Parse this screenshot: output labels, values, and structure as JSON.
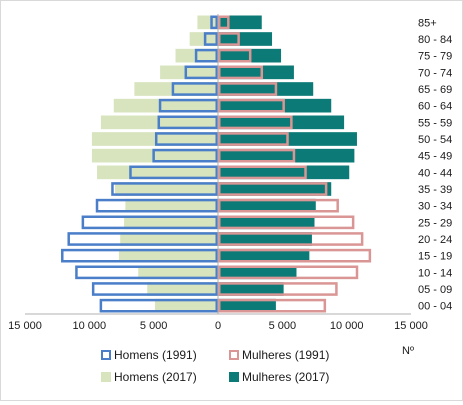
{
  "chart_data": {
    "type": "bar",
    "orientation": "horizontal",
    "layout": "population-pyramid",
    "title": "",
    "xlabel": "Nº",
    "ylabel": "",
    "xlim": [
      -15000,
      15000
    ],
    "xticks": [
      -15000,
      -10000,
      -5000,
      0,
      5000,
      10000,
      15000
    ],
    "xtick_labels": [
      "15 000",
      "10 000",
      "5 000",
      "0",
      "5 000",
      "10 000",
      "15 000"
    ],
    "categories": [
      "00 - 04",
      "05 - 09",
      "10 - 14",
      "15 - 19",
      "20 - 24",
      "25 - 29",
      "30 - 34",
      "35 - 39",
      "40 - 44",
      "45 - 49",
      "50 - 54",
      "55 - 59",
      "60 - 64",
      "65 - 69",
      "70 - 74",
      "75 - 79",
      "80 - 84",
      "85+"
    ],
    "series": [
      {
        "name": "Homens (2017)",
        "side": "left",
        "style": "filled",
        "color": "#d7e4bd",
        "values": [
          4900,
          5500,
          6200,
          7700,
          7600,
          7300,
          7200,
          8000,
          9400,
          9800,
          9800,
          9100,
          8100,
          6500,
          4500,
          3300,
          2200,
          1600
        ]
      },
      {
        "name": "Mulheres (2017)",
        "side": "right",
        "style": "filled",
        "color": "#0c7a76",
        "values": [
          4500,
          5100,
          6100,
          7100,
          7300,
          7500,
          7600,
          8800,
          10200,
          10600,
          10800,
          9800,
          8800,
          7400,
          5900,
          4900,
          4200,
          3400
        ]
      },
      {
        "name": "Homens (1991)",
        "side": "left",
        "style": "outline",
        "color": "#4a7ec9",
        "values": [
          9200,
          9800,
          11100,
          12200,
          11700,
          10600,
          9500,
          8300,
          6900,
          5100,
          4900,
          4700,
          4600,
          3600,
          2600,
          1800,
          1100,
          600
        ]
      },
      {
        "name": "Mulheres (1991)",
        "side": "right",
        "style": "outline",
        "color": "#d99694",
        "values": [
          8400,
          9300,
          10900,
          11900,
          11300,
          10600,
          9400,
          8500,
          6900,
          6000,
          5500,
          5800,
          5200,
          4600,
          3500,
          2600,
          1700,
          900
        ]
      }
    ],
    "legend": {
      "placement": "bottom",
      "entries": [
        "Homens (1991)",
        "Mulheres (1991)",
        "Homens (2017)",
        "Mulheres (2017)"
      ]
    },
    "grid": false
  }
}
